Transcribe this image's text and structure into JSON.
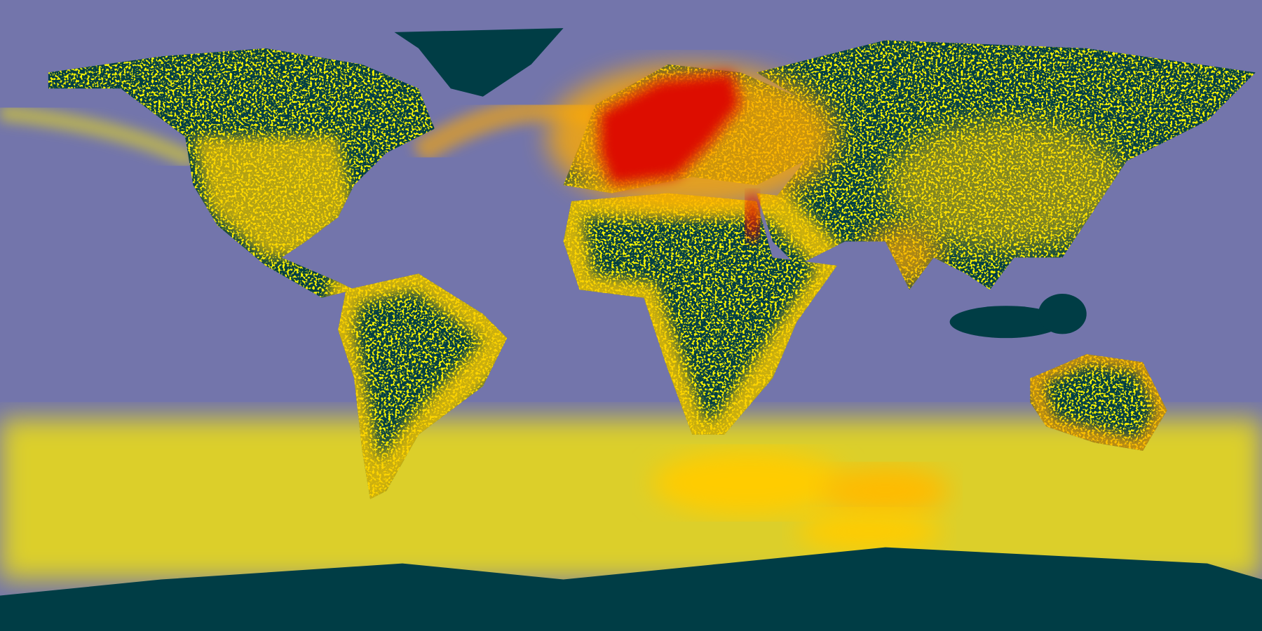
{
  "map": {
    "projection": "equirectangular",
    "colors": {
      "ocean": "#7375ab",
      "land": "#003d45",
      "density_low": "#ffee00",
      "density_mid": "#ffaa00",
      "density_high": "#dd1100"
    }
  }
}
